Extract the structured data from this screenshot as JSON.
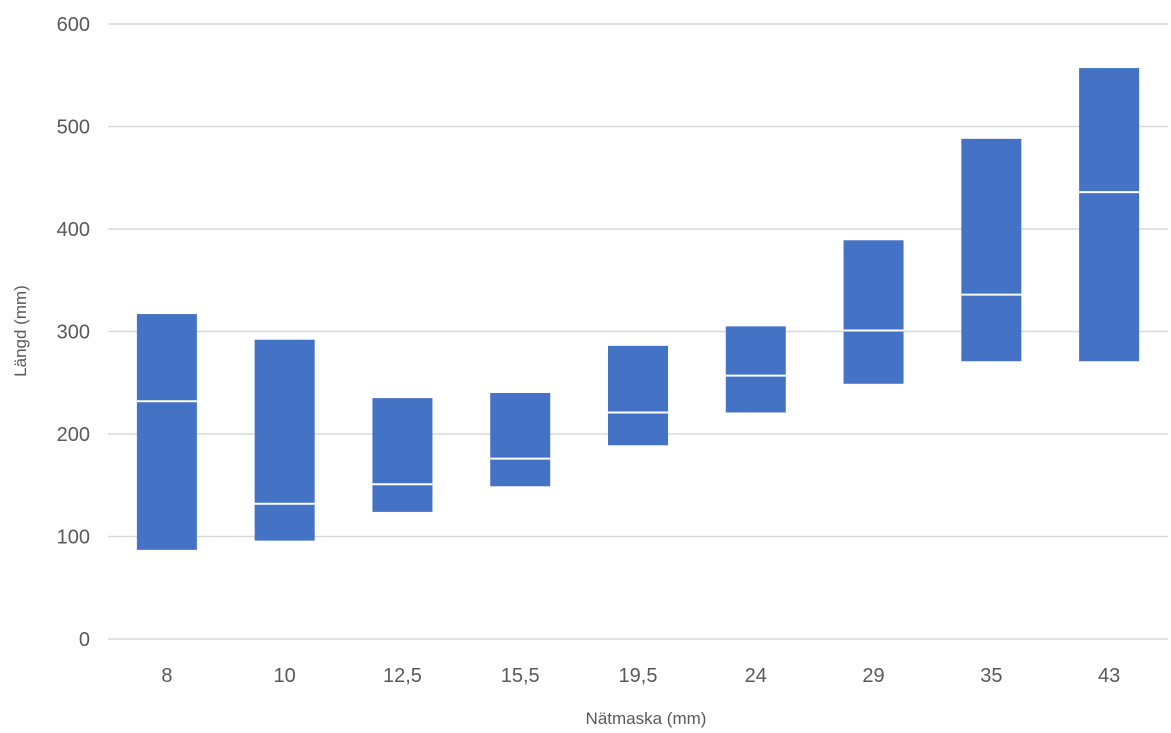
{
  "chart_data": {
    "type": "box",
    "title": "",
    "xlabel": "Nätmaska (mm)",
    "ylabel": "Längd (mm)",
    "ylim": [
      0,
      600
    ],
    "yticks": [
      0,
      100,
      200,
      300,
      400,
      500,
      600
    ],
    "grid": true,
    "legend": "none",
    "colors": {
      "box": "#4472c4",
      "median": "#ffffff",
      "grid": "#d9d9d9",
      "text": "#595959"
    },
    "categories": [
      "8",
      "10",
      "12,5",
      "15,5",
      "19,5",
      "24",
      "29",
      "35",
      "43"
    ],
    "series": [
      {
        "low": [
          87,
          96,
          124,
          149,
          189,
          221,
          249,
          271,
          271
        ],
        "median": [
          232,
          132,
          151,
          176,
          221,
          257,
          301,
          336,
          436
        ],
        "high": [
          317,
          292,
          235,
          240,
          286,
          305,
          389,
          488,
          557
        ]
      }
    ]
  }
}
